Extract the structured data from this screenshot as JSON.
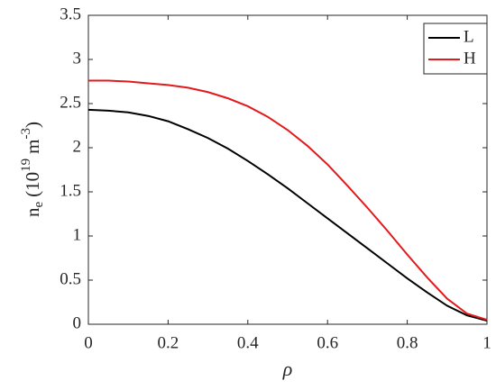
{
  "chart_data": {
    "type": "line",
    "xlabel": "ρ",
    "ylabel": [
      "n",
      "e",
      "(10",
      "19",
      "m",
      "-3",
      ")"
    ],
    "x": [
      0,
      0.05,
      0.1,
      0.15,
      0.2,
      0.25,
      0.3,
      0.35,
      0.4,
      0.45,
      0.5,
      0.55,
      0.6,
      0.65,
      0.7,
      0.75,
      0.8,
      0.85,
      0.9,
      0.95,
      1
    ],
    "series": [
      {
        "name": "L",
        "color": "#000000",
        "values": [
          2.43,
          2.42,
          2.4,
          2.36,
          2.3,
          2.21,
          2.11,
          1.99,
          1.85,
          1.7,
          1.54,
          1.37,
          1.2,
          1.03,
          0.86,
          0.69,
          0.52,
          0.36,
          0.21,
          0.1,
          0.04
        ]
      },
      {
        "name": "H",
        "color": "#e3191c",
        "values": [
          2.76,
          2.76,
          2.75,
          2.73,
          2.71,
          2.68,
          2.63,
          2.56,
          2.47,
          2.35,
          2.2,
          2.02,
          1.81,
          1.57,
          1.32,
          1.06,
          0.79,
          0.53,
          0.29,
          0.12,
          0.05
        ]
      }
    ],
    "xlim": [
      0,
      1
    ],
    "xticks": [
      0,
      0.2,
      0.4,
      0.6,
      0.8,
      1
    ],
    "ylim": [
      0,
      3.5
    ],
    "yticks": [
      0,
      0.5,
      1,
      1.5,
      2,
      2.5,
      3,
      3.5
    ],
    "legend": "upper right",
    "grid": false
  }
}
